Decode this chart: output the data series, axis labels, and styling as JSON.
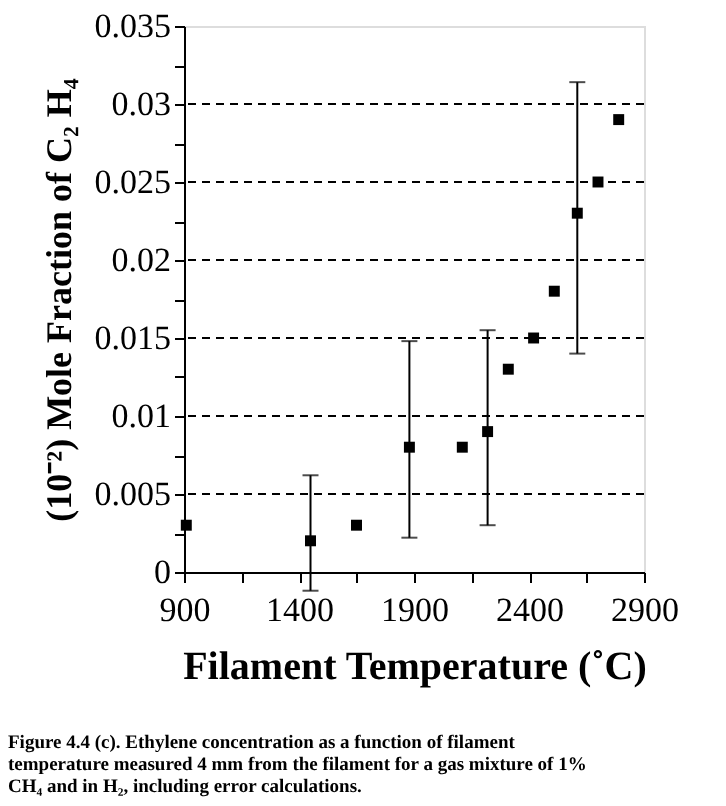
{
  "chart_data": {
    "type": "scatter",
    "xlabel": "Filament Temperature (˚C)",
    "ylabel": "(10⁻²) Mole Fraction of C₂ H₄",
    "annotations": [
      "Figure 4.4 (c). Ethylene concentration as a function of filament temperature measured 4 mm from the filament for a gas mixture of 1% CH₄ and in H₂, including error calculations."
    ],
    "x": [
      910,
      1450,
      1650,
      1880,
      2110,
      2220,
      2310,
      2420,
      2510,
      2610,
      2700,
      2790
    ],
    "values": [
      0.003,
      0.002,
      0.003,
      0.008,
      0.008,
      0.009,
      0.013,
      0.015,
      0.018,
      0.023,
      0.025,
      0.029
    ],
    "errors": [
      null,
      [
        -0.0012,
        0.0062
      ],
      null,
      [
        0.0022,
        0.0148
      ],
      null,
      [
        0.003,
        0.0155
      ],
      null,
      null,
      null,
      [
        0.014,
        0.0314
      ],
      null,
      null
    ],
    "color": "#000000",
    "marker": "square",
    "xlim": [
      900,
      2900
    ],
    "xticks": [
      900,
      {
        "value": 1150,
        "label": null
      },
      1400,
      {
        "value": 1650,
        "label": null
      },
      1900,
      {
        "value": 2150,
        "label": null
      },
      2400,
      {
        "value": 2650,
        "label": null
      },
      2900
    ],
    "ylim": [
      0,
      0.035
    ],
    "yticks": [
      0,
      {
        "value": 0.0025,
        "label": null
      },
      0.005,
      {
        "value": 0.0075,
        "label": null
      },
      0.01,
      {
        "value": 0.0125,
        "label": null
      },
      0.015,
      {
        "value": 0.0175,
        "label": null
      },
      0.02,
      {
        "value": 0.0225,
        "label": null
      },
      0.025,
      {
        "value": 0.0275,
        "label": null
      },
      0.03,
      {
        "value": 0.0325,
        "label": null
      },
      0.035
    ],
    "grid": "y",
    "line_style": "dashed"
  }
}
